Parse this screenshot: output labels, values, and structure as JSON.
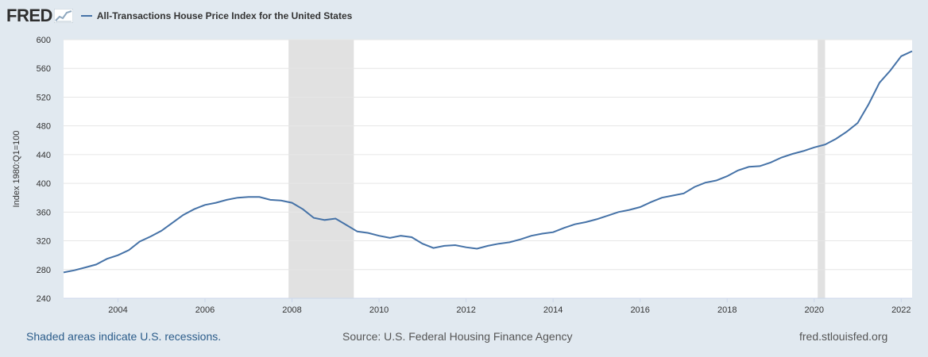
{
  "header": {
    "logo_text": "FRED",
    "logo_icon": "chart-line-icon"
  },
  "footer": {
    "recessions_note": "Shaded areas indicate U.S. recessions.",
    "source": "Source: U.S. Federal Housing Finance Agency",
    "site": "fred.stlouisfed.org"
  },
  "colors": {
    "background": "#e1e9f0",
    "plot": "#ffffff",
    "series": "#4572a7",
    "recession": "#e1e1e1",
    "grid": "#e6e6e6"
  },
  "chart_data": {
    "type": "line",
    "title": "",
    "xlabel": "",
    "ylabel": "Index 1980:Q1=100",
    "xlim": [
      2002.75,
      2022.25
    ],
    "ylim": [
      240,
      600
    ],
    "x_ticks": [
      2004,
      2006,
      2008,
      2010,
      2012,
      2014,
      2016,
      2018,
      2020,
      2022
    ],
    "y_ticks": [
      240,
      280,
      320,
      360,
      400,
      440,
      480,
      520,
      560,
      600
    ],
    "grid": true,
    "legend_position": "top-left",
    "recessions": [
      [
        2007.92,
        2009.42
      ],
      [
        2020.08,
        2020.25
      ]
    ],
    "series": [
      {
        "name": "All-Transactions House Price Index for the United States",
        "x": [
          2002.75,
          2003.0,
          2003.25,
          2003.5,
          2003.75,
          2004.0,
          2004.25,
          2004.5,
          2004.75,
          2005.0,
          2005.25,
          2005.5,
          2005.75,
          2006.0,
          2006.25,
          2006.5,
          2006.75,
          2007.0,
          2007.25,
          2007.5,
          2007.75,
          2008.0,
          2008.25,
          2008.5,
          2008.75,
          2009.0,
          2009.25,
          2009.5,
          2009.75,
          2010.0,
          2010.25,
          2010.5,
          2010.75,
          2011.0,
          2011.25,
          2011.5,
          2011.75,
          2012.0,
          2012.25,
          2012.5,
          2012.75,
          2013.0,
          2013.25,
          2013.5,
          2013.75,
          2014.0,
          2014.25,
          2014.5,
          2014.75,
          2015.0,
          2015.25,
          2015.5,
          2015.75,
          2016.0,
          2016.25,
          2016.5,
          2016.75,
          2017.0,
          2017.25,
          2017.5,
          2017.75,
          2018.0,
          2018.25,
          2018.5,
          2018.75,
          2019.0,
          2019.25,
          2019.5,
          2019.75,
          2020.0,
          2020.25,
          2020.5,
          2020.75,
          2021.0,
          2021.25,
          2021.5,
          2021.75,
          2022.0,
          2022.25
        ],
        "values": [
          276,
          279,
          283,
          287,
          295,
          300,
          307,
          319,
          326,
          334,
          345,
          356,
          364,
          370,
          373,
          377,
          380,
          381,
          381,
          377,
          376,
          373,
          364,
          352,
          349,
          351,
          342,
          333,
          331,
          327,
          324,
          327,
          325,
          316,
          310,
          313,
          314,
          311,
          309,
          313,
          316,
          318,
          322,
          327,
          330,
          332,
          338,
          343,
          346,
          350,
          355,
          360,
          363,
          367,
          374,
          380,
          383,
          386,
          395,
          401,
          404,
          410,
          418,
          423,
          424,
          429,
          436,
          441,
          445,
          450,
          454,
          462,
          472,
          484,
          510,
          540,
          557,
          577,
          584
        ]
      }
    ]
  }
}
